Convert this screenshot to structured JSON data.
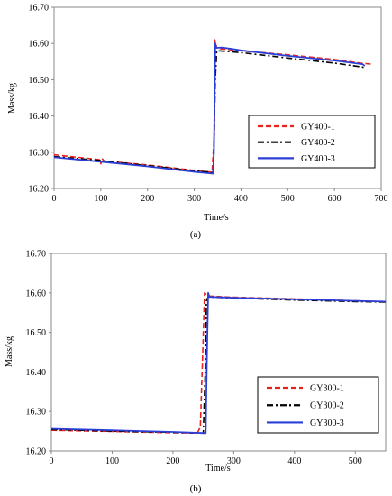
{
  "chart_data": [
    {
      "type": "line",
      "caption": "(a)",
      "xlabel": "Time/s",
      "ylabel": "Mass/kg",
      "xlim": [
        0,
        700
      ],
      "ylim": [
        16.2,
        16.7
      ],
      "xticks": [
        "0",
        "100",
        "200",
        "300",
        "400",
        "500",
        "600",
        "700"
      ],
      "yticks": [
        "16.20",
        "16.30",
        "16.40",
        "16.50",
        "16.60",
        "16.70"
      ],
      "grid": false,
      "legend_placement": "bottom-right",
      "series": [
        {
          "name": "GY400-1",
          "color": "#e8231e",
          "dash": "dashed",
          "x": [
            0,
            100,
            100,
            103,
            106,
            200,
            300,
            338,
            343,
            344,
            346,
            347,
            348,
            350,
            400,
            500,
            600,
            655,
            680
          ],
          "y": [
            16.293,
            16.279,
            16.268,
            16.283,
            16.276,
            16.265,
            16.25,
            16.245,
            16.35,
            16.61,
            16.59,
            16.595,
            16.588,
            16.586,
            16.58,
            16.569,
            16.556,
            16.546,
            16.543
          ]
        },
        {
          "name": "GY400-2",
          "color": "#000000",
          "dash": "dashdot",
          "x": [
            0,
            100,
            200,
            300,
            341,
            345,
            348,
            350,
            400,
            500,
            600,
            660,
            666
          ],
          "y": [
            16.288,
            16.277,
            16.263,
            16.249,
            16.244,
            16.5,
            16.58,
            16.58,
            16.575,
            16.56,
            16.546,
            16.535,
            16.531
          ]
        },
        {
          "name": "GY400-3",
          "color": "#2b3fd8",
          "dash": "solid",
          "x": [
            0,
            100,
            200,
            300,
            340,
            342,
            345,
            347,
            360,
            380,
            400,
            500,
            600,
            660,
            665
          ],
          "y": [
            16.286,
            16.274,
            16.261,
            16.246,
            16.241,
            16.3,
            16.6,
            16.588,
            16.589,
            16.585,
            16.581,
            16.566,
            16.553,
            16.543,
            16.538
          ]
        }
      ]
    },
    {
      "type": "line",
      "caption": "(b)",
      "xlabel": "Time/s",
      "ylabel": "Mass/kg",
      "xlim": [
        0,
        550
      ],
      "ylim": [
        16.2,
        16.7
      ],
      "xticks": [
        "0",
        "100",
        "200",
        "300",
        "400",
        "500"
      ],
      "yticks": [
        "16.20",
        "16.30",
        "16.40",
        "16.50",
        "16.60",
        "16.70"
      ],
      "grid": false,
      "legend_placement": "bottom-right",
      "series": [
        {
          "name": "GY300-1",
          "color": "#e8231e",
          "dash": "dashed",
          "x": [
            0,
            100,
            200,
            240,
            245,
            248,
            252,
            258,
            300,
            400,
            500,
            550
          ],
          "y": [
            16.252,
            16.249,
            16.246,
            16.245,
            16.26,
            16.4,
            16.6,
            16.592,
            16.589,
            16.585,
            16.58,
            16.578
          ]
        },
        {
          "name": "GY300-2",
          "color": "#000000",
          "dash": "dashdot",
          "x": [
            0,
            100,
            200,
            250,
            253,
            255,
            258,
            300,
            400,
            500,
            550
          ],
          "y": [
            16.254,
            16.25,
            16.247,
            16.245,
            16.4,
            16.58,
            16.59,
            16.587,
            16.582,
            16.578,
            16.577
          ]
        },
        {
          "name": "GY300-3",
          "color": "#2b3fd8",
          "dash": "solid",
          "x": [
            0,
            100,
            200,
            254,
            256,
            258,
            260,
            300,
            400,
            500,
            550
          ],
          "y": [
            16.256,
            16.252,
            16.248,
            16.245,
            16.45,
            16.6,
            16.59,
            16.588,
            16.584,
            16.58,
            16.578
          ]
        }
      ]
    }
  ]
}
